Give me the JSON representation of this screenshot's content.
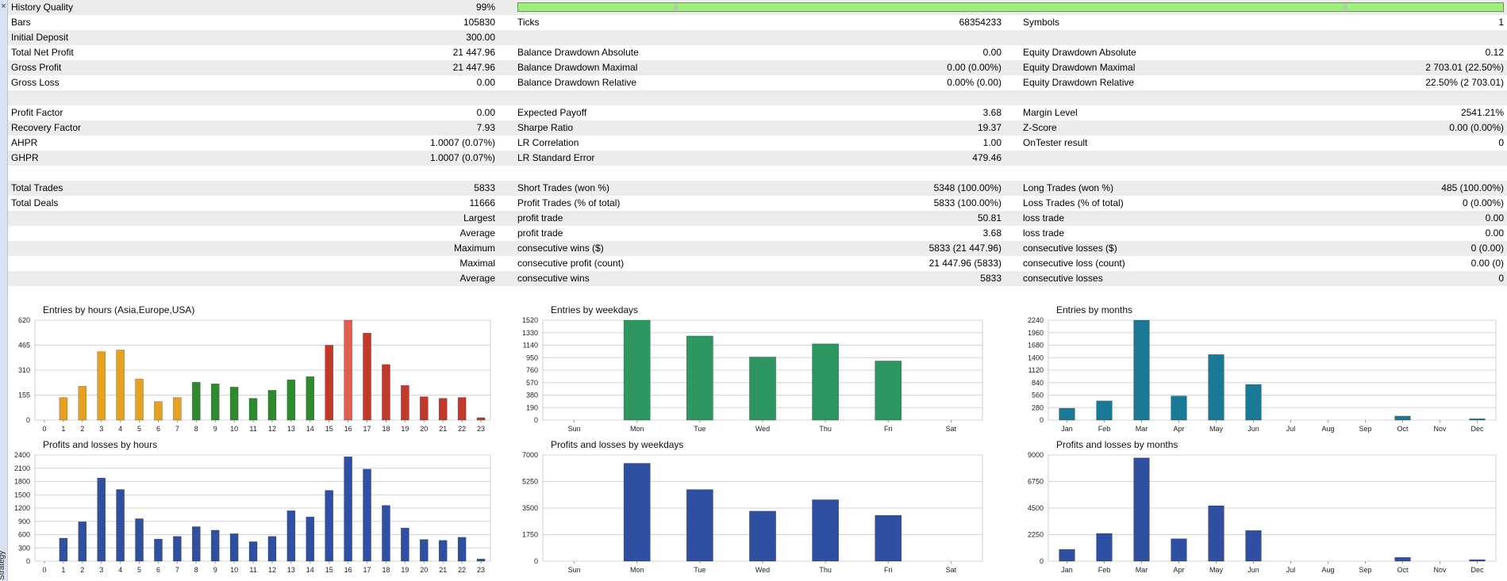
{
  "window": {
    "close_glyph": "×",
    "side_label": "Strategy Tester"
  },
  "quality": {
    "label": "History Quality",
    "value": "99%",
    "bar_fill_fraction": 0.99,
    "bar_color": "#9ef07a"
  },
  "stats_rows": [
    {
      "c1": "Bars",
      "c2": "105830",
      "c3": "Ticks",
      "c4": "68354233",
      "c5": "Symbols",
      "c6": "1"
    },
    {
      "c1": "Initial Deposit",
      "c2": "300.00",
      "c3": "",
      "c4": "",
      "c5": "",
      "c6": ""
    },
    {
      "c1": "Total Net Profit",
      "c2": "21 447.96",
      "c3": "Balance Drawdown Absolute",
      "c4": "0.00",
      "c5": "Equity Drawdown Absolute",
      "c6": "0.12"
    },
    {
      "c1": "Gross Profit",
      "c2": "21 447.96",
      "c3": "Balance Drawdown Maximal",
      "c4": "0.00 (0.00%)",
      "c5": "Equity Drawdown Maximal",
      "c6": "2 703.01 (22.50%)"
    },
    {
      "c1": "Gross Loss",
      "c2": "0.00",
      "c3": "Balance Drawdown Relative",
      "c4": "0.00% (0.00)",
      "c5": "Equity Drawdown Relative",
      "c6": "22.50% (2 703.01)"
    },
    {
      "c1": "",
      "c2": "",
      "c3": "",
      "c4": "",
      "c5": "",
      "c6": ""
    },
    {
      "c1": "Profit Factor",
      "c2": "0.00",
      "c3": "Expected Payoff",
      "c4": "3.68",
      "c5": "Margin Level",
      "c6": "2541.21%"
    },
    {
      "c1": "Recovery Factor",
      "c2": "7.93",
      "c3": "Sharpe Ratio",
      "c4": "19.37",
      "c5": "Z-Score",
      "c6": "0.00 (0.00%)"
    },
    {
      "c1": "AHPR",
      "c2": "1.0007 (0.07%)",
      "c3": "LR Correlation",
      "c4": "1.00",
      "c5": "OnTester result",
      "c6": "0"
    },
    {
      "c1": "GHPR",
      "c2": "1.0007 (0.07%)",
      "c3": "LR Standard Error",
      "c4": "479.46",
      "c5": "",
      "c6": ""
    },
    {
      "c1": "",
      "c2": "",
      "c3": "",
      "c4": "",
      "c5": "",
      "c6": ""
    },
    {
      "c1": "Total Trades",
      "c2": "5833",
      "c3": "Short Trades (won %)",
      "c4": "5348 (100.00%)",
      "c5": "Long Trades (won %)",
      "c6": "485 (100.00%)"
    },
    {
      "c1": "Total Deals",
      "c2": "11666",
      "c3": "Profit Trades (% of total)",
      "c4": "5833 (100.00%)",
      "c5": "Loss Trades (% of total)",
      "c6": "0 (0.00%)"
    },
    {
      "c1": "",
      "c2": "Largest",
      "c3": "profit trade",
      "c4": "50.81",
      "c5": "loss trade",
      "c6": "0.00"
    },
    {
      "c1": "",
      "c2": "Average",
      "c3": "profit trade",
      "c4": "3.68",
      "c5": "loss trade",
      "c6": "0.00"
    },
    {
      "c1": "",
      "c2": "Maximum",
      "c3": "consecutive wins ($)",
      "c4": "5833 (21 447.96)",
      "c5": "consecutive losses ($)",
      "c6": "0 (0.00)"
    },
    {
      "c1": "",
      "c2": "Maximal",
      "c3": "consecutive profit (count)",
      "c4": "21 447.96 (5833)",
      "c5": "consecutive loss (count)",
      "c6": "0.00 (0)"
    },
    {
      "c1": "",
      "c2": "Average",
      "c3": "consecutive wins",
      "c4": "5833",
      "c5": "consecutive losses",
      "c6": "0"
    },
    {
      "c1": "",
      "c2": "",
      "c3": "",
      "c4": "",
      "c5": "",
      "c6": ""
    }
  ],
  "chart_data": [
    {
      "type": "bar",
      "title": "Entries by hours (Asia,Europe,USA)",
      "categories": [
        "0",
        "1",
        "2",
        "3",
        "4",
        "5",
        "6",
        "7",
        "8",
        "9",
        "10",
        "11",
        "12",
        "13",
        "14",
        "15",
        "16",
        "17",
        "18",
        "19",
        "20",
        "21",
        "22",
        "23"
      ],
      "values": [
        0,
        140,
        210,
        425,
        435,
        255,
        115,
        140,
        235,
        225,
        205,
        135,
        185,
        250,
        270,
        465,
        620,
        540,
        345,
        215,
        145,
        135,
        140,
        15
      ],
      "yticks": [
        0,
        155,
        310,
        465,
        620
      ],
      "ylim": [
        0,
        620
      ],
      "colors": [
        "#e8a020",
        "#e8a020",
        "#e8a020",
        "#e8a020",
        "#e8a020",
        "#e8a020",
        "#e8a020",
        "#e8a020",
        "#2e8a2e",
        "#2e8a2e",
        "#2e8a2e",
        "#2e8a2e",
        "#2e8a2e",
        "#2e8a2e",
        "#2e8a2e",
        "#c0392b",
        "#e06050",
        "#c0392b",
        "#c0392b",
        "#c0392b",
        "#c0392b",
        "#c0392b",
        "#c0392b",
        "#c0392b"
      ]
    },
    {
      "type": "bar",
      "title": "Entries by weekdays",
      "categories": [
        "Sun",
        "Mon",
        "Tue",
        "Wed",
        "Thu",
        "Fri",
        "Sat"
      ],
      "values": [
        0,
        1520,
        1280,
        960,
        1160,
        900,
        0
      ],
      "yticks": [
        0,
        190,
        380,
        570,
        760,
        950,
        1140,
        1330,
        1520
      ],
      "ylim": [
        0,
        1520
      ],
      "colors": [
        "#2e9660",
        "#2e9660",
        "#2e9660",
        "#2e9660",
        "#2e9660",
        "#2e9660",
        "#2e9660"
      ]
    },
    {
      "type": "bar",
      "title": "Entries by months",
      "categories": [
        "Jan",
        "Feb",
        "Mar",
        "Apr",
        "May",
        "Jun",
        "Jul",
        "Aug",
        "Sep",
        "Oct",
        "Nov",
        "Dec"
      ],
      "values": [
        265,
        430,
        2240,
        540,
        1470,
        800,
        0,
        0,
        0,
        90,
        0,
        30
      ],
      "yticks": [
        0,
        280,
        560,
        840,
        1120,
        1400,
        1680,
        1960,
        2240
      ],
      "ylim": [
        0,
        2240
      ],
      "colors": [
        "#1a7a96",
        "#1a7a96",
        "#1a7a96",
        "#1a7a96",
        "#1a7a96",
        "#1a7a96",
        "#1a7a96",
        "#1a7a96",
        "#1a7a96",
        "#1a7a96",
        "#1a7a96",
        "#1a7a96"
      ]
    },
    {
      "type": "bar",
      "title": "Profits and losses by hours",
      "categories": [
        "0",
        "1",
        "2",
        "3",
        "4",
        "5",
        "6",
        "7",
        "8",
        "9",
        "10",
        "11",
        "12",
        "13",
        "14",
        "15",
        "16",
        "17",
        "18",
        "19",
        "20",
        "21",
        "22",
        "23"
      ],
      "values": [
        0,
        520,
        890,
        1880,
        1620,
        960,
        500,
        560,
        780,
        700,
        620,
        440,
        560,
        1140,
        1000,
        1600,
        2360,
        2080,
        1260,
        750,
        490,
        470,
        540,
        50
      ],
      "yticks": [
        0,
        300,
        600,
        900,
        1200,
        1500,
        1800,
        2100,
        2400
      ],
      "ylim": [
        0,
        2400
      ],
      "colors": [
        "#2f4fa0",
        "#2f4fa0",
        "#2f4fa0",
        "#2f4fa0",
        "#2f4fa0",
        "#2f4fa0",
        "#2f4fa0",
        "#2f4fa0",
        "#2f4fa0",
        "#2f4fa0",
        "#2f4fa0",
        "#2f4fa0",
        "#2f4fa0",
        "#2f4fa0",
        "#2f4fa0",
        "#2f4fa0",
        "#2f4fa0",
        "#2f4fa0",
        "#2f4fa0",
        "#2f4fa0",
        "#2f4fa0",
        "#2f4fa0",
        "#2f4fa0",
        "#2f4fa0"
      ]
    },
    {
      "type": "bar",
      "title": "Profits and losses by weekdays",
      "categories": [
        "Sun",
        "Mon",
        "Tue",
        "Wed",
        "Thu",
        "Fri",
        "Sat"
      ],
      "values": [
        0,
        6450,
        4720,
        3300,
        4050,
        3020,
        0
      ],
      "yticks": [
        0,
        1750,
        3500,
        5250,
        7000
      ],
      "ylim": [
        0,
        7000
      ],
      "colors": [
        "#2f4fa0",
        "#2f4fa0",
        "#2f4fa0",
        "#2f4fa0",
        "#2f4fa0",
        "#2f4fa0",
        "#2f4fa0"
      ]
    },
    {
      "type": "bar",
      "title": "Profits and losses by months",
      "categories": [
        "Jan",
        "Feb",
        "Mar",
        "Apr",
        "May",
        "Jun",
        "Jul",
        "Aug",
        "Sep",
        "Oct",
        "Nov",
        "Dec"
      ],
      "values": [
        1000,
        2350,
        8750,
        1900,
        4700,
        2600,
        0,
        0,
        0,
        320,
        0,
        130
      ],
      "yticks": [
        0,
        2250,
        4500,
        6750,
        9000
      ],
      "ylim": [
        0,
        9000
      ],
      "colors": [
        "#2f4fa0",
        "#2f4fa0",
        "#2f4fa0",
        "#2f4fa0",
        "#2f4fa0",
        "#2f4fa0",
        "#2f4fa0",
        "#2f4fa0",
        "#2f4fa0",
        "#2f4fa0",
        "#2f4fa0",
        "#2f4fa0"
      ]
    }
  ]
}
